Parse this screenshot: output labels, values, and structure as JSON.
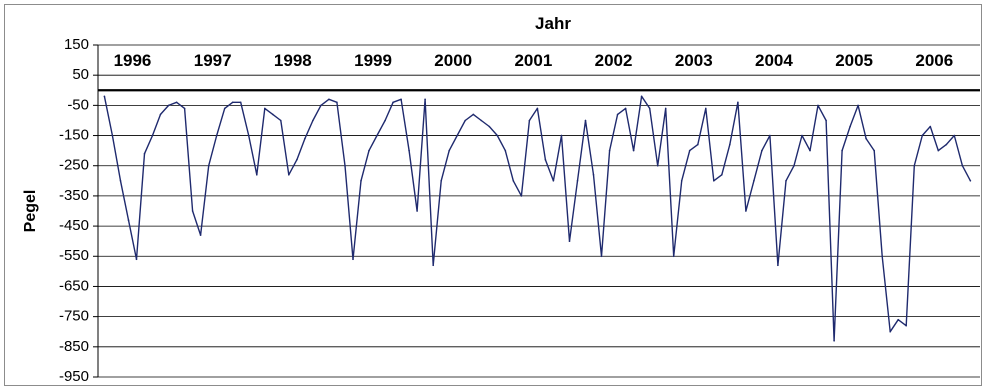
{
  "chart_data": {
    "type": "line",
    "title": "Jahr",
    "xlabel": "",
    "ylabel": "Pegel",
    "ylim": [
      -950,
      150
    ],
    "yticks": [
      150,
      50,
      -50,
      -150,
      -250,
      -350,
      -450,
      -550,
      -650,
      -750,
      -850,
      -950
    ],
    "reference_line": 0,
    "grid": true,
    "legend": "none",
    "colors": {
      "series": "#1f2a6e",
      "reference": "#000000",
      "grid": "#000000"
    },
    "x_categories": [
      "1996",
      "1997",
      "1998",
      "1999",
      "2000",
      "2001",
      "2002",
      "2003",
      "2004",
      "2005",
      "2006"
    ],
    "series": [
      {
        "values_note_free": true,
        "x": [
          1996.0,
          1996.1,
          1996.2,
          1996.3,
          1996.4,
          1996.5,
          1996.6,
          1996.7,
          1996.8,
          1996.9,
          1997.0,
          1997.1,
          1997.2,
          1997.3,
          1997.4,
          1997.5,
          1997.6,
          1997.7,
          1997.8,
          1997.9,
          1998.0,
          1998.1,
          1998.2,
          1998.3,
          1998.4,
          1998.5,
          1998.6,
          1998.7,
          1998.8,
          1998.9,
          1999.0,
          1999.1,
          1999.2,
          1999.3,
          1999.4,
          1999.5,
          1999.6,
          1999.7,
          1999.8,
          1999.9,
          2000.0,
          2000.1,
          2000.2,
          2000.3,
          2000.4,
          2000.5,
          2000.6,
          2000.7,
          2000.8,
          2000.9,
          2001.0,
          2001.1,
          2001.2,
          2001.3,
          2001.4,
          2001.5,
          2001.6,
          2001.7,
          2001.8,
          2001.9,
          2002.0,
          2002.1,
          2002.2,
          2002.3,
          2002.4,
          2002.5,
          2002.6,
          2002.7,
          2002.8,
          2002.9,
          2003.0,
          2003.1,
          2003.2,
          2003.3,
          2003.4,
          2003.5,
          2003.6,
          2003.7,
          2003.8,
          2003.9,
          2004.0,
          2004.1,
          2004.2,
          2004.3,
          2004.4,
          2004.5,
          2004.6,
          2004.7,
          2004.8,
          2004.9,
          2005.0,
          2005.1,
          2005.2,
          2005.3,
          2005.4,
          2005.5,
          2005.6,
          2005.7,
          2005.8,
          2005.9,
          2006.0,
          2006.1,
          2006.2,
          2006.3,
          2006.4,
          2006.5,
          2006.6,
          2006.7,
          2006.8
        ],
        "values": [
          -20,
          -150,
          -300,
          -430,
          -560,
          -210,
          -150,
          -80,
          -50,
          -40,
          -60,
          -400,
          -480,
          -250,
          -150,
          -60,
          -40,
          -40,
          -150,
          -280,
          -60,
          -80,
          -100,
          -280,
          -230,
          -160,
          -100,
          -50,
          -30,
          -40,
          -250,
          -560,
          -300,
          -200,
          -150,
          -100,
          -40,
          -30,
          -200,
          -400,
          -30,
          -580,
          -300,
          -200,
          -150,
          -100,
          -80,
          -100,
          -120,
          -150,
          -200,
          -300,
          -350,
          -100,
          -60,
          -230,
          -300,
          -150,
          -500,
          -300,
          -100,
          -280,
          -550,
          -200,
          -80,
          -60,
          -200,
          -20,
          -60,
          -250,
          -60,
          -550,
          -300,
          -200,
          -180,
          -60,
          -300,
          -280,
          -180,
          -40,
          -400,
          -300,
          -200,
          -150,
          -580,
          -300,
          -250,
          -150,
          -200,
          -50,
          -100,
          -830,
          -200,
          -120,
          -50,
          -160,
          -200,
          -550,
          -800,
          -760,
          -780,
          -250,
          -150,
          -120,
          -200,
          -180,
          -150,
          -250,
          -300
        ]
      }
    ]
  }
}
